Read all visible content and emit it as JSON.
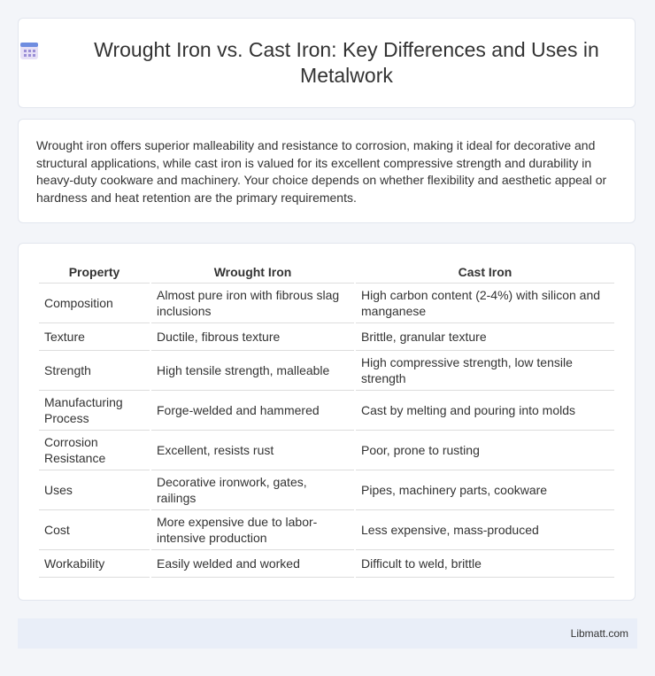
{
  "header": {
    "title": "Wrought Iron vs. Cast Iron: Key Differences and Uses in Metalwork"
  },
  "summary": "Wrought iron offers superior malleability and resistance to corrosion, making it ideal for decorative and structural applications, while cast iron is valued for its excellent compressive strength and durability in heavy-duty cookware and machinery. Your choice depends on whether flexibility and aesthetic appeal or hardness and heat retention are the primary requirements.",
  "table": {
    "columns": [
      "Property",
      "Wrought Iron",
      "Cast Iron"
    ],
    "rows": [
      [
        "Composition",
        "Almost pure iron with fibrous slag inclusions",
        "High carbon content (2-4%) with silicon and manganese"
      ],
      [
        "Texture",
        "Ductile, fibrous texture",
        "Brittle, granular texture"
      ],
      [
        "Strength",
        "High tensile strength, malleable",
        "High compressive strength, low tensile strength"
      ],
      [
        "Manufacturing Process",
        "Forge-welded and hammered",
        "Cast by melting and pouring into molds"
      ],
      [
        "Corrosion Resistance",
        "Excellent, resists rust",
        "Poor, prone to rusting"
      ],
      [
        "Uses",
        "Decorative ironwork, gates, railings",
        "Pipes, machinery parts, cookware"
      ],
      [
        "Cost",
        "More expensive due to labor-intensive production",
        "Less expensive, mass-produced"
      ],
      [
        "Workability",
        "Easily welded and worked",
        "Difficult to weld, brittle"
      ]
    ]
  },
  "footer": "Libmatt.com"
}
